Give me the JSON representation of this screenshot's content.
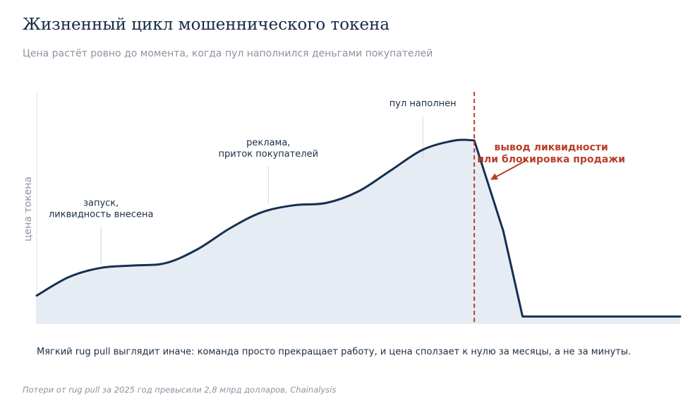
{
  "header": {
    "title": "Жизненный цикл мошеннического токена",
    "subtitle": "Цена растёт ровно до момента, когда пул наполнился деньгами покупателей"
  },
  "footer": {
    "note": "Мягкий rug pull выглядит иначе: команда просто прекращает работу, и цена сползает к нулю за месяцы, а не за минуты.",
    "source": "Потери от rug pull за 2025 год превысили 2,8 млрд долларов, Chainalysis"
  },
  "colors": {
    "line": "#172f50",
    "fill": "#e6ecf4",
    "event": "#b83e2a",
    "annotation_text": "#1c2e45",
    "muted": "#8a94a0"
  },
  "chart_data": {
    "type": "area",
    "title": "Жизненный цикл мошеннического токена",
    "subtitle": "Цена растёт ровно до момента, когда пул наполнился деньгами покупателей",
    "ylabel": "цена токена",
    "xlabel": "",
    "xlim": [
      0,
      100
    ],
    "ylim": [
      0,
      100
    ],
    "grid": false,
    "y_ticks_shown": false,
    "x_ticks_shown": false,
    "series": [
      {
        "x": [
          0,
          5,
          10,
          15,
          20,
          25,
          30,
          35,
          40,
          45,
          50,
          55,
          60,
          65,
          68,
          72.5,
          75.5,
          80,
          90,
          100
        ],
        "values": [
          12,
          20,
          24,
          25,
          26,
          32,
          41,
          48,
          51,
          52,
          57,
          66,
          75,
          79,
          79,
          40,
          3,
          3,
          3,
          3
        ]
      }
    ],
    "events": [
      {
        "x": 68,
        "label_lines": [
          "вывод ликвидности",
          "или блокировка продажи"
        ]
      }
    ],
    "annotations": [
      {
        "x": 10,
        "y": 24,
        "label_lines": [
          "запуск,",
          "ликвидность внесена"
        ]
      },
      {
        "x": 36,
        "y": 50,
        "label_lines": [
          "реклама,",
          "приток покупателей"
        ]
      },
      {
        "x": 60,
        "y": 70,
        "label_lines": [
          "пул наполнен"
        ]
      }
    ]
  }
}
